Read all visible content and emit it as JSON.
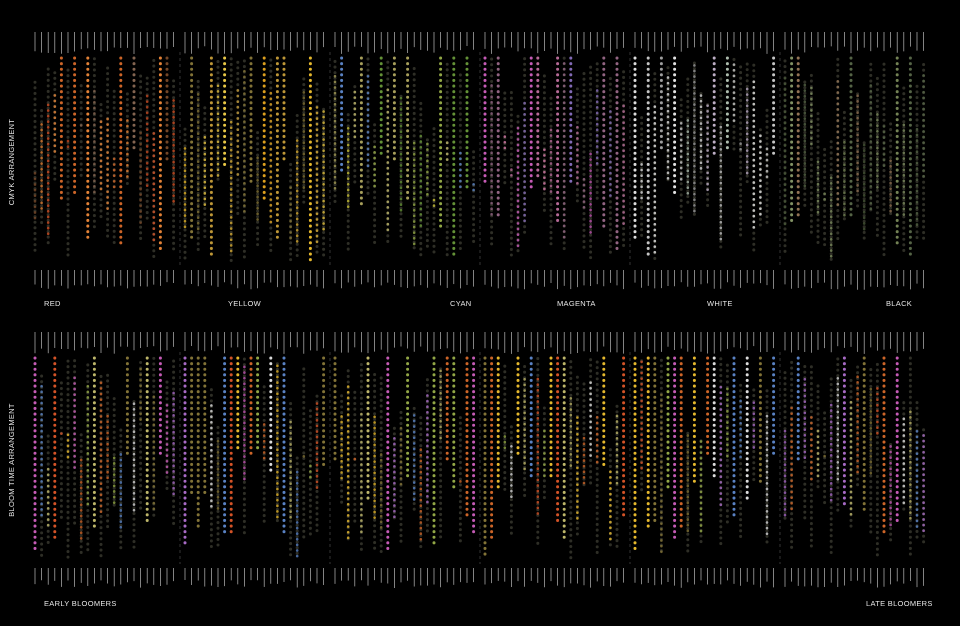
{
  "panels": [
    {
      "title": "CMYK ARRANGEMENT",
      "labels": [
        "RED",
        "YELLOW",
        "CYAN",
        "MAGENTA",
        "WHITE",
        "BLACK"
      ]
    },
    {
      "title": "BLOOM TIME ARRANGEMENT",
      "labels": [
        "EARLY BLOOMERS",
        "LATE BLOOMERS"
      ]
    }
  ]
}
